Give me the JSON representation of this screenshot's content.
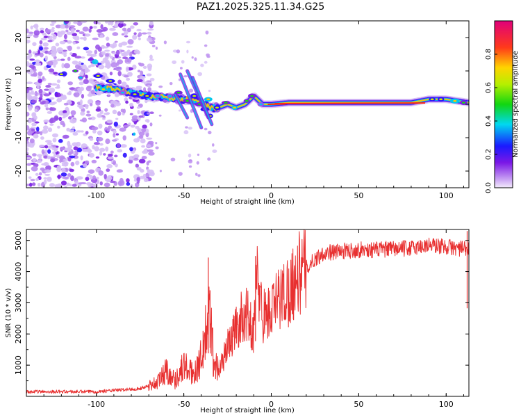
{
  "title": "PAZ1.2025.325.11.34.G25",
  "spectrogram": {
    "type": "heatmap",
    "xlabel": "Height of straight line (km)",
    "ylabel": "Frequency (Hz)",
    "xlim": [
      -140,
      113
    ],
    "ylim": [
      -25,
      25
    ],
    "xticks": [
      -100,
      -50,
      0,
      50,
      100
    ],
    "yticks": [
      20,
      10,
      0,
      -10,
      -20
    ],
    "xtick_labels": [
      "-100",
      "-50",
      "0",
      "50",
      "100"
    ],
    "ytick_labels": [
      "20",
      "10",
      "0",
      "-10",
      "-20"
    ],
    "colorbar": {
      "label": "Normalized spectral amplitude",
      "range": [
        0,
        1
      ],
      "ticks": [
        0.0,
        0.2,
        0.4,
        0.6,
        0.8
      ],
      "tick_labels": [
        "0.0",
        "0.2",
        "0.4",
        "0.6",
        "0.8"
      ]
    },
    "ridge": {
      "x": [
        -100,
        -90,
        -80,
        -70,
        -60,
        -50,
        -45,
        -40,
        -35,
        -30,
        -25,
        -20,
        -15,
        -10,
        -5,
        0,
        10,
        20,
        40,
        60,
        80,
        90,
        100,
        113
      ],
      "y": [
        5,
        4.5,
        3.5,
        2.5,
        2,
        1.5,
        1.5,
        0.5,
        -1,
        -1,
        0,
        -1,
        0,
        2.5,
        0,
        0,
        0.5,
        0.5,
        0.5,
        0.5,
        0.5,
        1.5,
        1.5,
        0.5
      ]
    }
  },
  "snr": {
    "type": "line",
    "xlabel": "Height of straight line (km)",
    "ylabel": "SNR (10 * v/v)",
    "xlim": [
      -140,
      113
    ],
    "ylim": [
      0,
      5350
    ],
    "xticks": [
      -100,
      -50,
      0,
      50,
      100
    ],
    "yticks": [
      1000,
      2000,
      3000,
      4000,
      5000
    ],
    "xtick_labels": [
      "-100",
      "-50",
      "0",
      "50",
      "100"
    ],
    "ytick_labels": [
      "1000",
      "2000",
      "3000",
      "4000",
      "5000"
    ],
    "color": "#e83030",
    "envelope": {
      "x": [
        -140,
        -100,
        -75,
        -65,
        -60,
        -55,
        -50,
        -45,
        -40,
        -38,
        -36,
        -35,
        -33,
        -30,
        -25,
        -20,
        -15,
        -10,
        -8,
        -5,
        0,
        5,
        10,
        15,
        20,
        25,
        30,
        40,
        50,
        60,
        80,
        90,
        100,
        113
      ],
      "y": [
        150,
        150,
        250,
        450,
        850,
        500,
        1000,
        700,
        1200,
        1800,
        2300,
        2600,
        1200,
        800,
        1600,
        2200,
        2700,
        2100,
        3800,
        2600,
        2700,
        3200,
        3400,
        3900,
        4100,
        4400,
        4600,
        4650,
        4700,
        4700,
        4750,
        4850,
        4800,
        4700
      ]
    },
    "spikes": [
      {
        "x": -36,
        "y": 4450
      },
      {
        "x": -35,
        "y": 3400
      },
      {
        "x": -9,
        "y": 4500
      },
      {
        "x": -39,
        "y": 2100
      },
      {
        "x": 112,
        "y": 5300
      }
    ]
  }
}
